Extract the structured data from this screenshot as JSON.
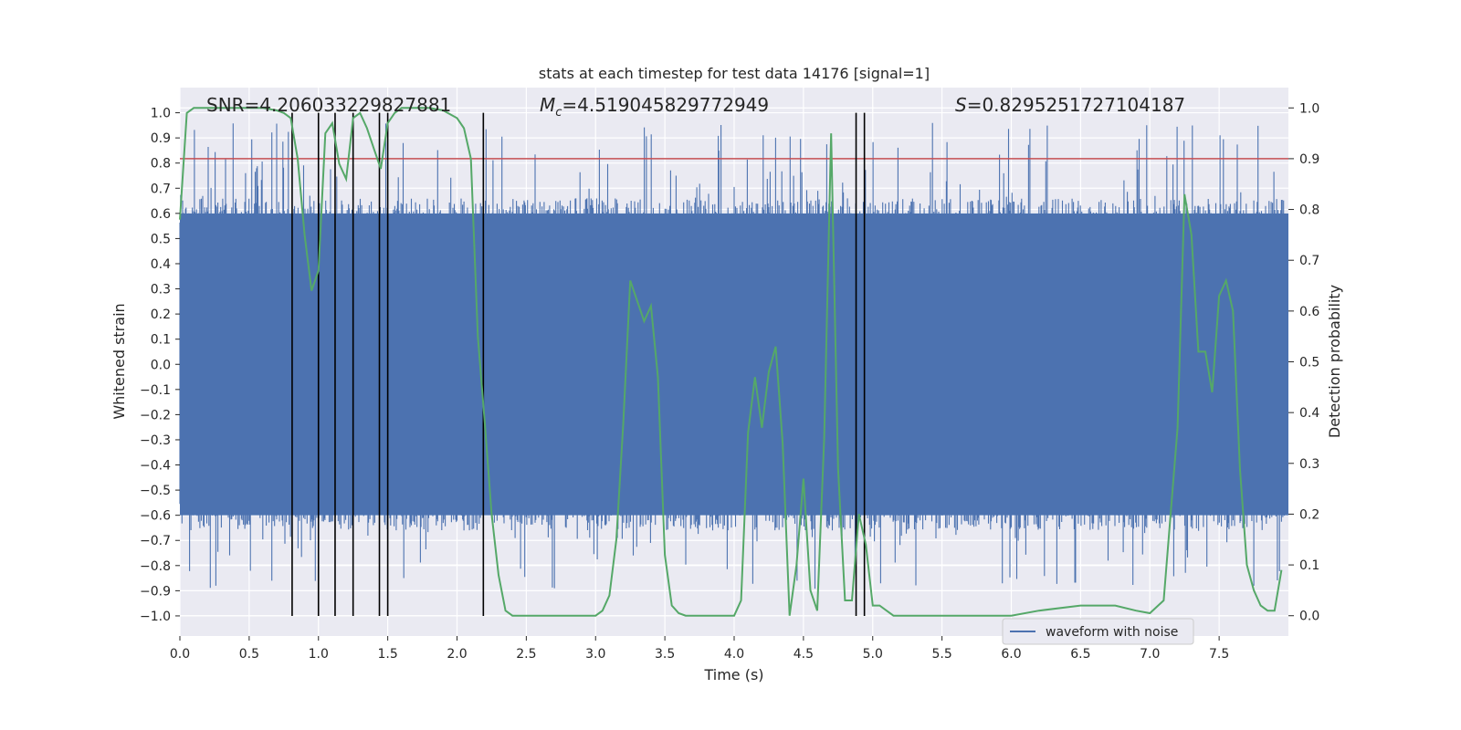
{
  "chart_data": {
    "type": "line",
    "title": "stats at each timestep for test data 14176 [signal=1]",
    "xlabel": "Time (s)",
    "ylabel_left": "Whitened strain",
    "ylabel_right": "Detection probability",
    "xlim": [
      0.0,
      8.0
    ],
    "ylim_left": [
      -1.08,
      1.1
    ],
    "ylim_right": [
      -0.04,
      1.04
    ],
    "x_ticks": [
      0.0,
      0.5,
      1.0,
      1.5,
      2.0,
      2.5,
      3.0,
      3.5,
      4.0,
      4.5,
      5.0,
      5.5,
      6.0,
      6.5,
      7.0,
      7.5
    ],
    "x_tick_labels": [
      "0.0",
      "0.5",
      "1.0",
      "1.5",
      "2.0",
      "2.5",
      "3.0",
      "3.5",
      "4.0",
      "4.5",
      "5.0",
      "5.5",
      "6.0",
      "6.5",
      "7.0",
      "7.5"
    ],
    "y_left_ticks": [
      1.0,
      0.9,
      0.8,
      0.7,
      0.6,
      0.5,
      0.4,
      0.3,
      0.2,
      0.1,
      0.0,
      -0.1,
      -0.2,
      -0.3,
      -0.4,
      -0.5,
      -0.6,
      -0.7,
      -0.8,
      -0.9,
      -1.0
    ],
    "y_left_tick_labels": [
      "1.0",
      "0.9",
      "0.8",
      "0.7",
      "0.6",
      "0.5",
      "0.4",
      "0.3",
      "0.2",
      "0.1",
      "0.0",
      "−0.1",
      "−0.2",
      "−0.3",
      "−0.4",
      "−0.5",
      "−0.6",
      "−0.7",
      "−0.8",
      "−0.9",
      "−1.0"
    ],
    "y_right_ticks": [
      1.0,
      0.9,
      0.8,
      0.7,
      0.6,
      0.5,
      0.4,
      0.3,
      0.2,
      0.1,
      0.0
    ],
    "y_right_tick_labels": [
      "1.0",
      "0.9",
      "0.8",
      "0.7",
      "0.6",
      "0.5",
      "0.4",
      "0.3",
      "0.2",
      "0.1",
      "0.0"
    ],
    "grid": true,
    "threshold": {
      "value": 0.9,
      "axis": "right",
      "color": "#c44e52"
    },
    "detection_lines_x": [
      0.81,
      1.0,
      1.12,
      1.25,
      1.44,
      1.5,
      2.19,
      4.88,
      4.94
    ],
    "annotations": [
      {
        "key": "snr",
        "text": "SNR=4.206033229827881"
      },
      {
        "key": "mc",
        "prefix": "M",
        "sub": "c",
        "text": "=4.519045829772949"
      },
      {
        "key": "s",
        "prefix": "S",
        "text": "=0.8295251727104187"
      }
    ],
    "legend": {
      "label": "waveform with noise",
      "placement": "lower-right"
    },
    "series": [
      {
        "name": "waveform with noise",
        "axis": "left",
        "color": "#4c72b0",
        "style": "noise",
        "n_samples": 1600,
        "typical_amplitude": 0.6,
        "max_amplitude": 0.96
      },
      {
        "name": "detection probability",
        "axis": "right",
        "color": "#55a868",
        "x": [
          0.0,
          0.05,
          0.1,
          0.2,
          0.3,
          0.4,
          0.5,
          0.6,
          0.7,
          0.75,
          0.8,
          0.85,
          0.9,
          0.95,
          1.0,
          1.05,
          1.1,
          1.15,
          1.2,
          1.25,
          1.3,
          1.35,
          1.4,
          1.45,
          1.5,
          1.55,
          1.6,
          1.7,
          1.8,
          1.9,
          2.0,
          2.05,
          2.1,
          2.15,
          2.2,
          2.25,
          2.3,
          2.35,
          2.4,
          2.45,
          2.5,
          2.6,
          2.8,
          3.0,
          3.05,
          3.1,
          3.15,
          3.2,
          3.25,
          3.3,
          3.35,
          3.4,
          3.45,
          3.5,
          3.55,
          3.6,
          3.65,
          3.7,
          3.8,
          4.0,
          4.05,
          4.1,
          4.15,
          4.2,
          4.25,
          4.3,
          4.35,
          4.4,
          4.45,
          4.5,
          4.55,
          4.6,
          4.65,
          4.7,
          4.75,
          4.8,
          4.85,
          4.9,
          4.95,
          5.0,
          5.05,
          5.1,
          5.15,
          5.2,
          5.25,
          5.3,
          5.35,
          5.4,
          5.45,
          5.5,
          5.6,
          5.8,
          6.0,
          6.2,
          6.5,
          6.75,
          6.9,
          7.0,
          7.1,
          7.2,
          7.25,
          7.3,
          7.35,
          7.4,
          7.45,
          7.5,
          7.55,
          7.6,
          7.65,
          7.7,
          7.75,
          7.8,
          7.85,
          7.9,
          7.95
        ],
        "y": [
          0.78,
          0.99,
          1.0,
          1.0,
          1.0,
          1.0,
          1.0,
          1.0,
          0.995,
          0.99,
          0.98,
          0.9,
          0.75,
          0.64,
          0.68,
          0.95,
          0.97,
          0.89,
          0.86,
          0.98,
          0.99,
          0.96,
          0.92,
          0.88,
          0.97,
          0.99,
          1.0,
          1.0,
          1.0,
          0.995,
          0.98,
          0.96,
          0.9,
          0.55,
          0.38,
          0.2,
          0.08,
          0.01,
          0.0,
          0.0,
          0.0,
          0.0,
          0.0,
          0.0,
          0.01,
          0.04,
          0.15,
          0.38,
          0.66,
          0.62,
          0.58,
          0.61,
          0.47,
          0.12,
          0.02,
          0.005,
          0.0,
          0.0,
          0.0,
          0.0,
          0.03,
          0.36,
          0.47,
          0.37,
          0.48,
          0.53,
          0.34,
          0.0,
          0.1,
          0.27,
          0.05,
          0.01,
          0.35,
          0.95,
          0.29,
          0.03,
          0.03,
          0.2,
          0.14,
          0.02,
          0.02,
          0.01,
          0.0,
          0.0,
          0.0,
          0.0,
          0.0,
          0.0,
          0.0,
          0.0,
          0.0,
          0.0,
          0.0,
          0.01,
          0.02,
          0.02,
          0.01,
          0.005,
          0.03,
          0.37,
          0.83,
          0.75,
          0.52,
          0.52,
          0.44,
          0.63,
          0.66,
          0.6,
          0.29,
          0.1,
          0.05,
          0.02,
          0.01,
          0.01,
          0.09
        ]
      }
    ]
  }
}
